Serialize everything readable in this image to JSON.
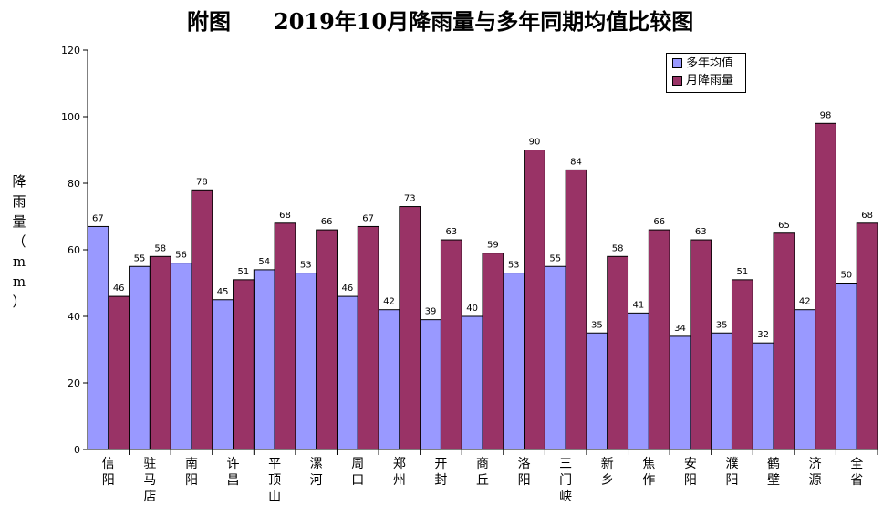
{
  "header": {
    "figure_label": "附图",
    "title": "2019年10月降雨量与多年同期均值比较图"
  },
  "chart_data": {
    "type": "bar",
    "title": "2019年10月降雨量与多年同期均值比较图",
    "ylabel": "降雨量（mm）",
    "ylim": [
      0,
      120
    ],
    "yticks": [
      0,
      20,
      40,
      60,
      80,
      100,
      120
    ],
    "grid": false,
    "legend_position": "top-right",
    "categories": [
      "信阳",
      "驻马店",
      "南阳",
      "许昌",
      "平顶山",
      "漯河",
      "周口",
      "郑州",
      "开封",
      "商丘",
      "洛阳",
      "三门峡",
      "新乡",
      "焦作",
      "安阳",
      "濮阳",
      "鹤壁",
      "济源",
      "全省"
    ],
    "series": [
      {
        "name": "多年均值",
        "color": "#9999ff",
        "values": [
          67,
          55,
          56,
          45,
          54,
          53,
          46,
          42,
          39,
          40,
          53,
          55,
          35,
          41,
          34,
          35,
          32,
          42,
          50
        ]
      },
      {
        "name": "月降雨量",
        "color": "#993366",
        "values": [
          46,
          58,
          78,
          51,
          68,
          66,
          67,
          73,
          63,
          59,
          90,
          84,
          58,
          66,
          63,
          51,
          65,
          98,
          68
        ]
      }
    ]
  }
}
